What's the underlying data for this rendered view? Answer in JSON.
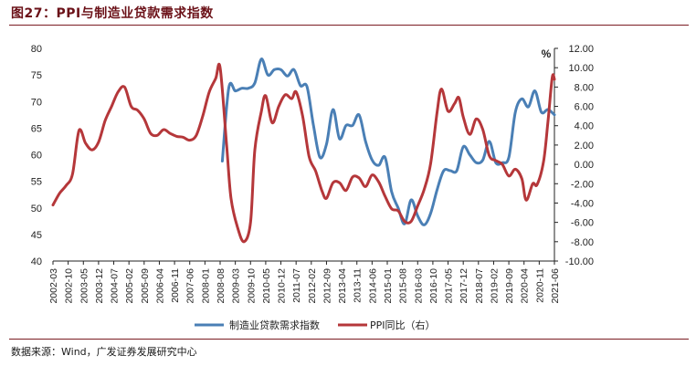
{
  "figure": {
    "title": "图27：PPI与制造业贷款需求指数",
    "source": "数据来源：Wind，广发证券发展研究中心"
  },
  "chart_data": {
    "type": "line",
    "title": "PPI与制造业贷款需求指数",
    "x_tick_labels": [
      "2002-03",
      "2002-10",
      "2003-05",
      "2003-12",
      "2004-07",
      "2005-02",
      "2005-09",
      "2006-04",
      "2006-11",
      "2007-06",
      "2008-01",
      "2008-08",
      "2009-03",
      "2009-10",
      "2010-05",
      "2010-12",
      "2011-07",
      "2012-02",
      "2012-09",
      "2013-04",
      "2013-11",
      "2014-06",
      "2015-01",
      "2015-08",
      "2016-03",
      "2016-10",
      "2017-05",
      "2017-12",
      "2018-07",
      "2019-02",
      "2019-09",
      "2020-04",
      "2020-11",
      "2021-06"
    ],
    "x_range": [
      "2002-03",
      "2021-06"
    ],
    "left_axis": {
      "ylim": [
        40,
        80
      ],
      "ticks": [
        "40",
        "45",
        "50",
        "55",
        "60",
        "65",
        "70",
        "75",
        "80"
      ]
    },
    "right_axis": {
      "ylim": [
        -10,
        12
      ],
      "unit": "%",
      "ticks": [
        "-10.00",
        "-8.00",
        "-6.00",
        "-4.00",
        "-2.00",
        "0.00",
        "2.00",
        "4.00",
        "6.00",
        "8.00",
        "10.00",
        "12.00"
      ]
    },
    "grid": false,
    "legend_position": "bottom",
    "colors": {
      "loan_index": "#4a7fb5",
      "ppi": "#b5373a"
    },
    "series": [
      {
        "name": "制造业贷款需求指数",
        "axis": "left",
        "color": "#4a7fb5",
        "points": [
          [
            "2008-09",
            58.8
          ],
          [
            "2008-12",
            72.6
          ],
          [
            "2009-03",
            72.0
          ],
          [
            "2009-06",
            72.5
          ],
          [
            "2009-09",
            72.5
          ],
          [
            "2009-12",
            73.5
          ],
          [
            "2010-03",
            78.0
          ],
          [
            "2010-06",
            75.0
          ],
          [
            "2010-09",
            76.0
          ],
          [
            "2010-12",
            76.0
          ],
          [
            "2011-03",
            74.8
          ],
          [
            "2011-06",
            76.0
          ],
          [
            "2011-09",
            73.0
          ],
          [
            "2011-12",
            72.8
          ],
          [
            "2012-03",
            65.5
          ],
          [
            "2012-06",
            59.5
          ],
          [
            "2012-09",
            62.0
          ],
          [
            "2012-12",
            68.5
          ],
          [
            "2013-03",
            63.0
          ],
          [
            "2013-06",
            65.5
          ],
          [
            "2013-09",
            65.5
          ],
          [
            "2013-12",
            67.5
          ],
          [
            "2014-03",
            62.5
          ],
          [
            "2014-06",
            59.0
          ],
          [
            "2014-09",
            58.0
          ],
          [
            "2014-12",
            59.5
          ],
          [
            "2015-03",
            53.0
          ],
          [
            "2015-06",
            50.0
          ],
          [
            "2015-09",
            47.0
          ],
          [
            "2015-12",
            51.5
          ],
          [
            "2016-03",
            48.5
          ],
          [
            "2016-06",
            46.8
          ],
          [
            "2016-09",
            49.0
          ],
          [
            "2016-12",
            53.5
          ],
          [
            "2017-03",
            57.0
          ],
          [
            "2017-06",
            57.0
          ],
          [
            "2017-09",
            57.0
          ],
          [
            "2017-12",
            61.5
          ],
          [
            "2018-03",
            60.0
          ],
          [
            "2018-06",
            58.5
          ],
          [
            "2018-09",
            59.0
          ],
          [
            "2018-12",
            62.5
          ],
          [
            "2019-03",
            58.5
          ],
          [
            "2019-06",
            58.5
          ],
          [
            "2019-09",
            59.5
          ],
          [
            "2019-12",
            68.0
          ],
          [
            "2020-03",
            70.5
          ],
          [
            "2020-06",
            69.0
          ],
          [
            "2020-09",
            72.0
          ],
          [
            "2020-12",
            68.0
          ],
          [
            "2021-03",
            68.5
          ],
          [
            "2021-06",
            67.5
          ]
        ]
      },
      {
        "name": "PPI同比（右）",
        "axis": "right",
        "color": "#b5373a",
        "points": [
          [
            "2002-03",
            -4.2
          ],
          [
            "2002-06",
            -3.0
          ],
          [
            "2002-09",
            -2.2
          ],
          [
            "2002-12",
            -1.0
          ],
          [
            "2003-03",
            3.5
          ],
          [
            "2003-06",
            2.2
          ],
          [
            "2003-09",
            1.5
          ],
          [
            "2003-12",
            2.3
          ],
          [
            "2004-03",
            4.5
          ],
          [
            "2004-06",
            6.0
          ],
          [
            "2004-09",
            7.5
          ],
          [
            "2004-12",
            8.0
          ],
          [
            "2005-03",
            6.0
          ],
          [
            "2005-06",
            5.6
          ],
          [
            "2005-09",
            4.7
          ],
          [
            "2005-12",
            3.2
          ],
          [
            "2006-03",
            3.0
          ],
          [
            "2006-06",
            3.6
          ],
          [
            "2006-09",
            3.2
          ],
          [
            "2006-12",
            2.9
          ],
          [
            "2007-03",
            2.8
          ],
          [
            "2007-06",
            2.5
          ],
          [
            "2007-09",
            3.0
          ],
          [
            "2007-12",
            5.0
          ],
          [
            "2008-03",
            7.5
          ],
          [
            "2008-06",
            8.9
          ],
          [
            "2008-08",
            10.0
          ],
          [
            "2008-11",
            2.0
          ],
          [
            "2009-01",
            -3.5
          ],
          [
            "2009-04",
            -6.5
          ],
          [
            "2009-07",
            -8.0
          ],
          [
            "2009-10",
            -6.0
          ],
          [
            "2009-12",
            1.5
          ],
          [
            "2010-03",
            5.5
          ],
          [
            "2010-05",
            7.1
          ],
          [
            "2010-08",
            4.3
          ],
          [
            "2010-11",
            6.0
          ],
          [
            "2011-02",
            7.2
          ],
          [
            "2011-05",
            6.8
          ],
          [
            "2011-07",
            7.5
          ],
          [
            "2011-10",
            5.0
          ],
          [
            "2012-01",
            0.8
          ],
          [
            "2012-04",
            -0.7
          ],
          [
            "2012-07",
            -2.8
          ],
          [
            "2012-09",
            -3.5
          ],
          [
            "2012-12",
            -1.9
          ],
          [
            "2013-03",
            -1.9
          ],
          [
            "2013-06",
            -2.7
          ],
          [
            "2013-09",
            -1.3
          ],
          [
            "2013-12",
            -1.4
          ],
          [
            "2014-03",
            -2.3
          ],
          [
            "2014-06",
            -1.1
          ],
          [
            "2014-09",
            -1.8
          ],
          [
            "2014-12",
            -3.3
          ],
          [
            "2015-03",
            -4.6
          ],
          [
            "2015-06",
            -4.8
          ],
          [
            "2015-09",
            -5.9
          ],
          [
            "2015-12",
            -5.9
          ],
          [
            "2016-03",
            -4.3
          ],
          [
            "2016-06",
            -2.6
          ],
          [
            "2016-09",
            0.1
          ],
          [
            "2016-12",
            5.5
          ],
          [
            "2017-02",
            7.8
          ],
          [
            "2017-05",
            5.5
          ],
          [
            "2017-08",
            6.3
          ],
          [
            "2017-10",
            6.9
          ],
          [
            "2017-12",
            4.9
          ],
          [
            "2018-03",
            3.1
          ],
          [
            "2018-06",
            4.7
          ],
          [
            "2018-09",
            3.6
          ],
          [
            "2018-12",
            0.9
          ],
          [
            "2019-03",
            0.4
          ],
          [
            "2019-06",
            0.0
          ],
          [
            "2019-09",
            -1.2
          ],
          [
            "2019-12",
            -0.5
          ],
          [
            "2020-03",
            -1.5
          ],
          [
            "2020-05",
            -3.7
          ],
          [
            "2020-08",
            -2.0
          ],
          [
            "2020-10",
            -2.1
          ],
          [
            "2021-01",
            0.3
          ],
          [
            "2021-03",
            4.4
          ],
          [
            "2021-05",
            9.0
          ],
          [
            "2021-06",
            8.8
          ]
        ]
      }
    ]
  }
}
